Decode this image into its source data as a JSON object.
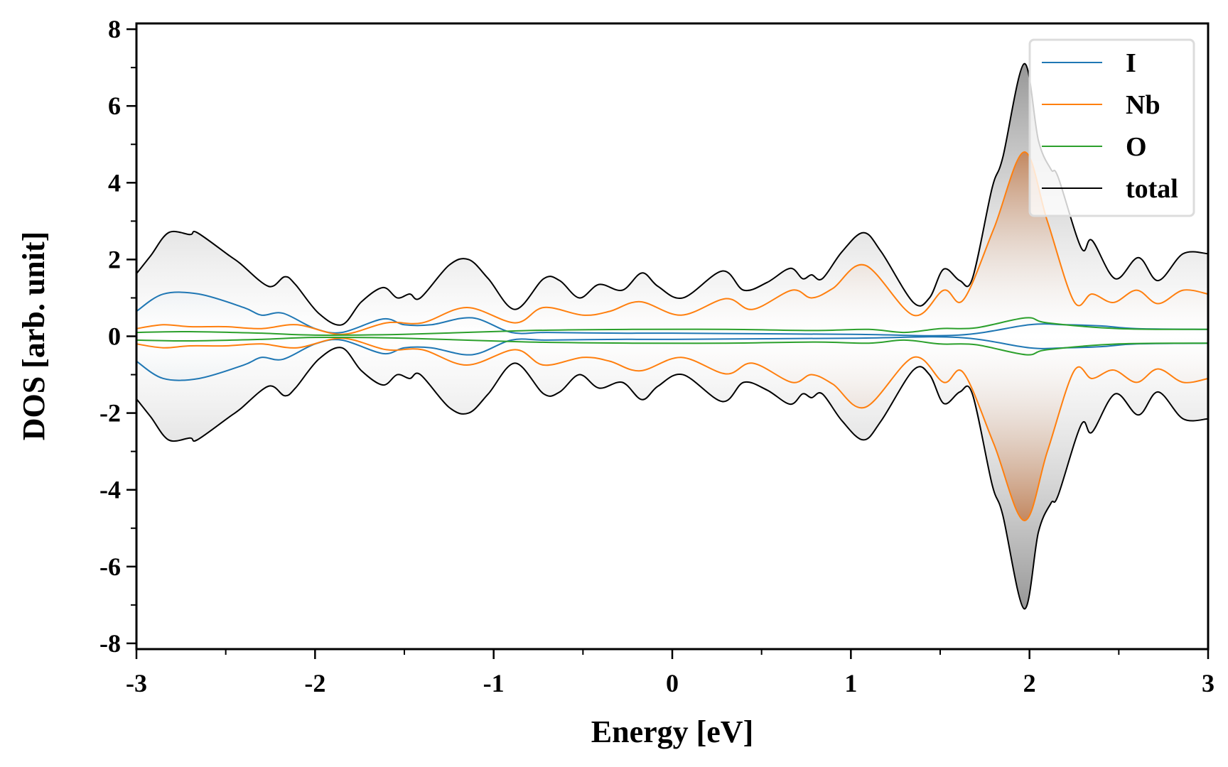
{
  "chart_data": {
    "type": "area",
    "title": "",
    "xlabel": "Energy [eV]",
    "ylabel": "DOS [arb. unit]",
    "xlim": [
      -3,
      3
    ],
    "ylim": [
      -8.15,
      8.15
    ],
    "xticks": [
      -3,
      -2,
      -1,
      0,
      1,
      2,
      3
    ],
    "xtick_labels": [
      "-3",
      "-2",
      "-1",
      "0",
      "1",
      "2",
      "3"
    ],
    "yticks": [
      -8,
      -6,
      -4,
      -2,
      0,
      2,
      4,
      6,
      8
    ],
    "ytick_labels": [
      "-8",
      "-6",
      "-4",
      "-2",
      "0",
      "2",
      "4",
      "6",
      "8"
    ],
    "mirrored": true,
    "grid": false,
    "legend_position": "top-right",
    "series": [
      {
        "name": "I",
        "color": "#1f77b4",
        "x": [
          -3,
          -2.85,
          -2.65,
          -2.4,
          -2.3,
          -2.18,
          -2.0,
          -1.85,
          -1.62,
          -1.5,
          -1.35,
          -1.12,
          -0.9,
          -0.7,
          -0.3,
          0,
          1,
          1.6,
          2.0,
          2.2,
          2.4,
          2.6,
          3
        ],
        "y": [
          0.65,
          1.1,
          1.1,
          0.75,
          0.55,
          0.6,
          0.2,
          0.1,
          0.45,
          0.3,
          0.3,
          0.48,
          0.1,
          0.1,
          0.08,
          0.08,
          0.05,
          0.03,
          0.3,
          0.3,
          0.27,
          0.2,
          0.18
        ]
      },
      {
        "name": "Nb",
        "color": "#ff7f0e",
        "x": [
          -3,
          -2.85,
          -2.7,
          -2.5,
          -2.3,
          -2.1,
          -1.85,
          -1.6,
          -1.4,
          -1.15,
          -0.88,
          -0.72,
          -0.5,
          -0.35,
          -0.18,
          0.05,
          0.3,
          0.45,
          0.67,
          0.78,
          0.9,
          1.08,
          1.35,
          1.52,
          1.63,
          1.8,
          1.97,
          2.1,
          2.25,
          2.35,
          2.47,
          2.6,
          2.72,
          2.86,
          3
        ],
        "y": [
          0.2,
          0.3,
          0.25,
          0.25,
          0.2,
          0.3,
          0.05,
          0.35,
          0.35,
          0.75,
          0.35,
          0.75,
          0.55,
          0.65,
          0.9,
          0.55,
          0.98,
          0.7,
          1.2,
          1.0,
          1.25,
          1.85,
          0.55,
          1.2,
          0.95,
          2.8,
          4.8,
          3.0,
          0.9,
          1.1,
          0.88,
          1.2,
          0.85,
          1.2,
          1.1
        ]
      },
      {
        "name": "O",
        "color": "#2ca02c",
        "x": [
          -3,
          -2.7,
          -2.3,
          -2.0,
          -1.5,
          -0.8,
          -0.2,
          0.3,
          0.8,
          1.1,
          1.3,
          1.5,
          1.7,
          1.98,
          2.1,
          2.5,
          3
        ],
        "y": [
          0.1,
          0.12,
          0.08,
          0.03,
          0.05,
          0.15,
          0.18,
          0.18,
          0.15,
          0.18,
          0.1,
          0.2,
          0.22,
          0.48,
          0.35,
          0.2,
          0.18
        ]
      },
      {
        "name": "total",
        "color": "#000000",
        "x": [
          -3,
          -2.92,
          -2.82,
          -2.7,
          -2.66,
          -2.48,
          -2.42,
          -2.26,
          -2.17,
          -2.11,
          -1.98,
          -1.85,
          -1.74,
          -1.62,
          -1.54,
          -1.47,
          -1.41,
          -1.25,
          -1.14,
          -1.03,
          -0.88,
          -0.72,
          -0.63,
          -0.52,
          -0.41,
          -0.28,
          -0.17,
          -0.08,
          0.06,
          0.28,
          0.4,
          0.53,
          0.66,
          0.73,
          0.78,
          0.84,
          0.95,
          1.07,
          1.17,
          1.35,
          1.44,
          1.52,
          1.61,
          1.68,
          1.79,
          1.85,
          1.97,
          2.05,
          2.12,
          2.16,
          2.29,
          2.35,
          2.48,
          2.61,
          2.72,
          2.86,
          3.0
        ],
        "y": [
          1.63,
          2.1,
          2.7,
          2.65,
          2.7,
          2.1,
          1.9,
          1.3,
          1.55,
          1.35,
          0.6,
          0.3,
          0.9,
          1.27,
          1.0,
          1.1,
          1.0,
          1.85,
          2.0,
          1.5,
          0.7,
          1.5,
          1.45,
          1.0,
          1.35,
          1.2,
          1.65,
          1.3,
          1.0,
          1.7,
          1.2,
          1.4,
          1.77,
          1.5,
          1.6,
          1.5,
          2.2,
          2.7,
          2.2,
          0.88,
          1.0,
          1.75,
          1.45,
          1.5,
          3.85,
          4.65,
          7.1,
          5.1,
          4.35,
          4.15,
          2.3,
          2.5,
          1.5,
          2.05,
          1.45,
          2.15,
          2.15
        ]
      }
    ]
  }
}
